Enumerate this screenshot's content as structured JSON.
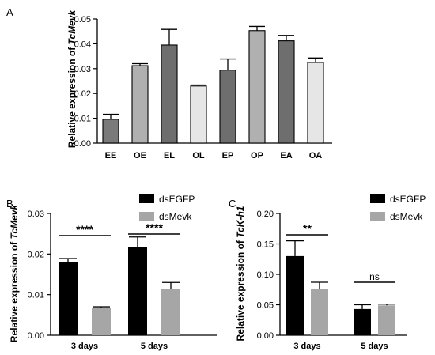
{
  "chart_data": [
    {
      "panel": "A",
      "type": "bar",
      "ylabel_prefix": "Relative  expression of ",
      "ylabel_gene": "TcMevk",
      "ylim": [
        0,
        0.05
      ],
      "yticks": [
        "0.00",
        "0.01",
        "0.02",
        "0.03",
        "0.04",
        "0.05"
      ],
      "categories": [
        "EE",
        "OE",
        "EL",
        "OL",
        "EP",
        "OP",
        "EA",
        "OA"
      ],
      "values": [
        0.0096,
        0.0312,
        0.0395,
        0.023,
        0.0294,
        0.0453,
        0.0412,
        0.0325
      ],
      "errors": [
        0.002,
        0.0008,
        0.0063,
        0.0004,
        0.0045,
        0.0017,
        0.0022,
        0.0018
      ],
      "colors": [
        "#7a7a7a",
        "#b0b0b0",
        "#6e6e6e",
        "#e6e6e6",
        "#6e6e6e",
        "#b0b0b0",
        "#6e6e6e",
        "#e6e6e6"
      ]
    },
    {
      "panel": "B",
      "type": "bar",
      "ylabel_prefix": "Relative  expression of ",
      "ylabel_gene": "TcMevk",
      "ylim": [
        0,
        0.03
      ],
      "yticks": [
        "0.00",
        "0.01",
        "0.02",
        "0.03"
      ],
      "categories": [
        "3 days",
        "5 days"
      ],
      "series": [
        {
          "name": "dsEGFP",
          "color": "#000000",
          "values": [
            0.0181,
            0.0218
          ],
          "errors": [
            0.0008,
            0.0024
          ]
        },
        {
          "name": "dsMevk",
          "color": "#a6a6a6",
          "values": [
            0.0067,
            0.0113
          ],
          "errors": [
            0.0003,
            0.0017
          ]
        }
      ],
      "significance": [
        "****",
        "****"
      ]
    },
    {
      "panel": "C",
      "type": "bar",
      "ylabel_prefix": "Relative  expression of ",
      "ylabel_gene": "TcK-h1",
      "ylim": [
        0,
        0.2
      ],
      "yticks": [
        "0.00",
        "0.05",
        "0.10",
        "0.15",
        "0.20"
      ],
      "categories": [
        "3 days",
        "5 days"
      ],
      "series": [
        {
          "name": "dsEGFP",
          "color": "#000000",
          "values": [
            0.13,
            0.043
          ],
          "errors": [
            0.025,
            0.007
          ]
        },
        {
          "name": "dsMevk",
          "color": "#a6a6a6",
          "values": [
            0.076,
            0.049
          ],
          "errors": [
            0.011,
            0.002
          ]
        }
      ],
      "significance": [
        "**",
        "ns"
      ]
    }
  ]
}
